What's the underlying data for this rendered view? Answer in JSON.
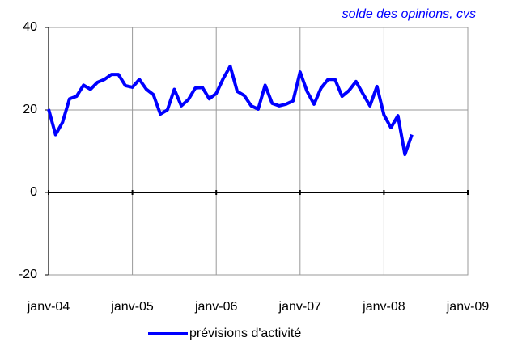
{
  "chart_data": {
    "type": "line",
    "subtitle": "solde des opinions, cvs",
    "categories": [
      "janv-04",
      null,
      null,
      null,
      null,
      null,
      null,
      null,
      null,
      null,
      null,
      null,
      "janv-05",
      null,
      null,
      null,
      null,
      null,
      null,
      null,
      null,
      null,
      null,
      null,
      "janv-06",
      null,
      null,
      null,
      null,
      null,
      null,
      null,
      null,
      null,
      null,
      null,
      "janv-07",
      null,
      null,
      null,
      null,
      null,
      null,
      null,
      null,
      null,
      null,
      null,
      "janv-08",
      null,
      null,
      null,
      null,
      null,
      null,
      null,
      null,
      null,
      null,
      null,
      "janv-09"
    ],
    "series": [
      {
        "name": "prévisions d'activité",
        "color": "#0000ff",
        "values": [
          20.2,
          14,
          17,
          22.7,
          23.3,
          26,
          25,
          26.7,
          27.4,
          28.6,
          28.6,
          25.9,
          25.5,
          27.4,
          25,
          23.7,
          19,
          20,
          25,
          21,
          22.5,
          25.3,
          25.5,
          22.7,
          24,
          27.6,
          30.6,
          24.5,
          23.5,
          21,
          20.2,
          26,
          21.6,
          21,
          21.4,
          22.2,
          29.2,
          24.5,
          21.4,
          25.3,
          27.4,
          27.4,
          23.3,
          24.7,
          26.9,
          23.9,
          21,
          25.7,
          18.8,
          15.7,
          18.6,
          9.2,
          14,
          null,
          null,
          null,
          null,
          null,
          null,
          null,
          null
        ]
      }
    ],
    "ylim": [
      -20,
      40
    ],
    "yticks": [
      40,
      20,
      0,
      -20
    ],
    "grid": true
  }
}
